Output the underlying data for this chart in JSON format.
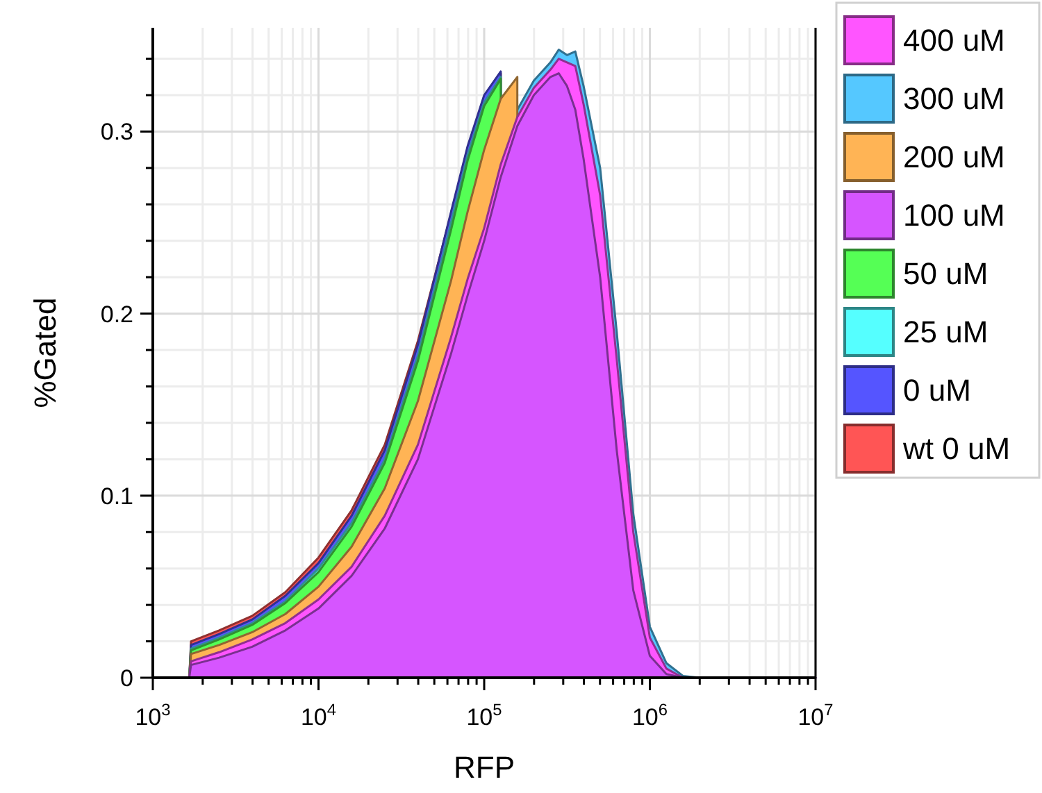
{
  "chart_data": {
    "type": "area",
    "xlabel": "RFP",
    "ylabel": "%Gated",
    "log": "x",
    "grid": true,
    "legend": "right",
    "xlim": [
      1000,
      10000000
    ],
    "xticks": [
      {
        "value": 1000,
        "label": "10$^{3}$"
      },
      {
        "value": 10000,
        "label": "10$^{4}$"
      },
      {
        "value": 100000,
        "label": "10$^{5}$"
      },
      {
        "value": 1000000,
        "label": "10$^{6}$"
      },
      {
        "value": 10000000,
        "label": "10$^{7}$"
      }
    ],
    "ylim": [
      0,
      0.357
    ],
    "yticks": [
      0,
      0.1,
      0.2,
      0.3
    ],
    "x": [
      1000,
      1660,
      1700,
      2512,
      3981,
      6310,
      10000,
      15850,
      25120,
      39810,
      63100,
      79430,
      100000,
      125900,
      158500,
      199500,
      251200,
      281800,
      316200,
      354800,
      398100,
      501200,
      631000,
      794300,
      1000000,
      1259000,
      1585000,
      1995000,
      10000000
    ],
    "series": [
      {
        "name": "wt 0 uM",
        "color": "#ff5555",
        "values": [
          0,
          0,
          0.02,
          0.026,
          0.034,
          0.047,
          0.066,
          0.092,
          0.128,
          0.185,
          0.255,
          0.29,
          0.318,
          0.332,
          null,
          null,
          null,
          null,
          null,
          null,
          null,
          null,
          null,
          null,
          null,
          null,
          null,
          null,
          null
        ]
      },
      {
        "name": "0 uM",
        "color": "#5555ff",
        "values": [
          0,
          0,
          0.018,
          0.024,
          0.032,
          0.045,
          0.063,
          0.089,
          0.125,
          0.183,
          0.256,
          0.292,
          0.32,
          0.333,
          null,
          null,
          null,
          null,
          null,
          null,
          null,
          null,
          null,
          null,
          null,
          null,
          null,
          null,
          null
        ]
      },
      {
        "name": "25 uM",
        "color": "#55ffff",
        "values": [
          0,
          0,
          0.016,
          0.022,
          0.03,
          0.042,
          0.06,
          0.085,
          0.12,
          0.177,
          0.25,
          0.287,
          0.316,
          0.33,
          null,
          null,
          null,
          null,
          null,
          null,
          null,
          null,
          null,
          null,
          null,
          null,
          null,
          null,
          null
        ]
      },
      {
        "name": "50 uM",
        "color": "#55ff55",
        "values": [
          0,
          0,
          0.015,
          0.021,
          0.029,
          0.041,
          0.058,
          0.083,
          0.118,
          0.174,
          0.246,
          0.284,
          0.314,
          0.329,
          null,
          null,
          null,
          null,
          null,
          null,
          null,
          null,
          null,
          null,
          null,
          null,
          null,
          null,
          null
        ]
      },
      {
        "name": "300 uM",
        "color": "#55c8ff",
        "values": [
          0,
          0,
          0.01,
          0.015,
          0.022,
          0.031,
          0.044,
          0.062,
          0.09,
          0.13,
          0.19,
          0.222,
          0.25,
          0.285,
          0.312,
          0.328,
          0.338,
          0.345,
          0.342,
          0.344,
          0.325,
          0.28,
          0.19,
          0.09,
          0.028,
          0.008,
          0.001,
          0,
          0
        ]
      },
      {
        "name": "200 uM",
        "color": "#ffb455",
        "values": [
          0,
          0,
          0.013,
          0.018,
          0.025,
          0.035,
          0.05,
          0.072,
          0.104,
          0.152,
          0.218,
          0.256,
          0.29,
          0.318,
          0.33,
          null,
          null,
          null,
          null,
          null,
          null,
          null,
          null,
          null,
          null,
          null,
          null,
          null,
          null
        ]
      },
      {
        "name": "400 uM",
        "color": "#ff55ff",
        "values": [
          0,
          0,
          0.009,
          0.014,
          0.021,
          0.03,
          0.043,
          0.061,
          0.089,
          0.128,
          0.187,
          0.219,
          0.247,
          0.282,
          0.308,
          0.324,
          0.334,
          0.34,
          0.338,
          0.336,
          0.315,
          0.265,
          0.175,
          0.08,
          0.022,
          0.005,
          0,
          0,
          0
        ]
      },
      {
        "name": "100 uM",
        "color": "#d655ff",
        "values": [
          0,
          0,
          0.007,
          0.011,
          0.017,
          0.026,
          0.038,
          0.056,
          0.082,
          0.12,
          0.178,
          0.21,
          0.24,
          0.275,
          0.303,
          0.32,
          0.33,
          0.332,
          0.325,
          0.312,
          0.285,
          0.22,
          0.125,
          0.048,
          0.012,
          0.002,
          0,
          0,
          0
        ]
      }
    ]
  }
}
